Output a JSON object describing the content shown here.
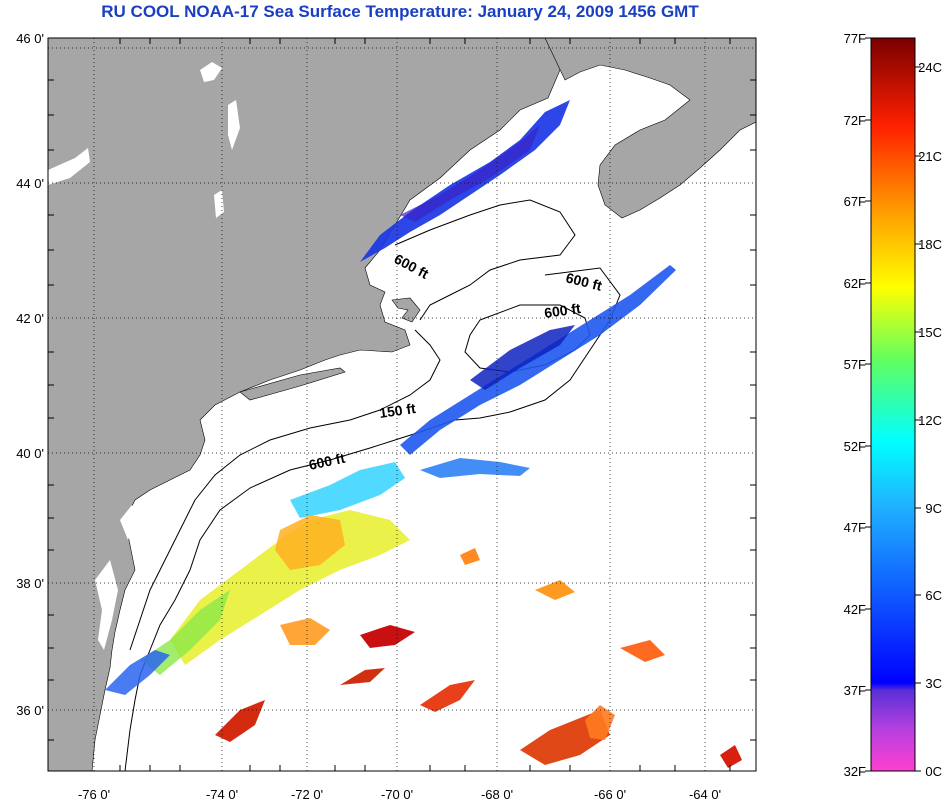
{
  "title": "RU COOL  NOAA-17  Sea Surface Temperature:  January 24, 2009 1456 GMT",
  "map": {
    "lat_ticks": [
      "46 0'",
      "44 0'",
      "42 0'",
      "40 0'",
      "38 0'",
      "36 0'"
    ],
    "lon_ticks": [
      "-76 0'",
      "-74 0'",
      "-72 0'",
      "-70 0'",
      "-68 0'",
      "-66 0'",
      "-64 0'"
    ],
    "contour_labels": [
      "600 ft",
      "600 ft",
      "600 ft",
      "150 ft",
      "600 ft"
    ]
  },
  "colorbar": {
    "fahrenheit": [
      "77F",
      "72F",
      "67F",
      "62F",
      "57F",
      "52F",
      "47F",
      "42F",
      "37F",
      "32F"
    ],
    "celsius": [
      "24C",
      "21C",
      "18C",
      "15C",
      "12C",
      "9C",
      "6C",
      "3C",
      "0C"
    ]
  },
  "colors": {
    "land": "#a6a6a6",
    "title": "#1a3fc0"
  }
}
